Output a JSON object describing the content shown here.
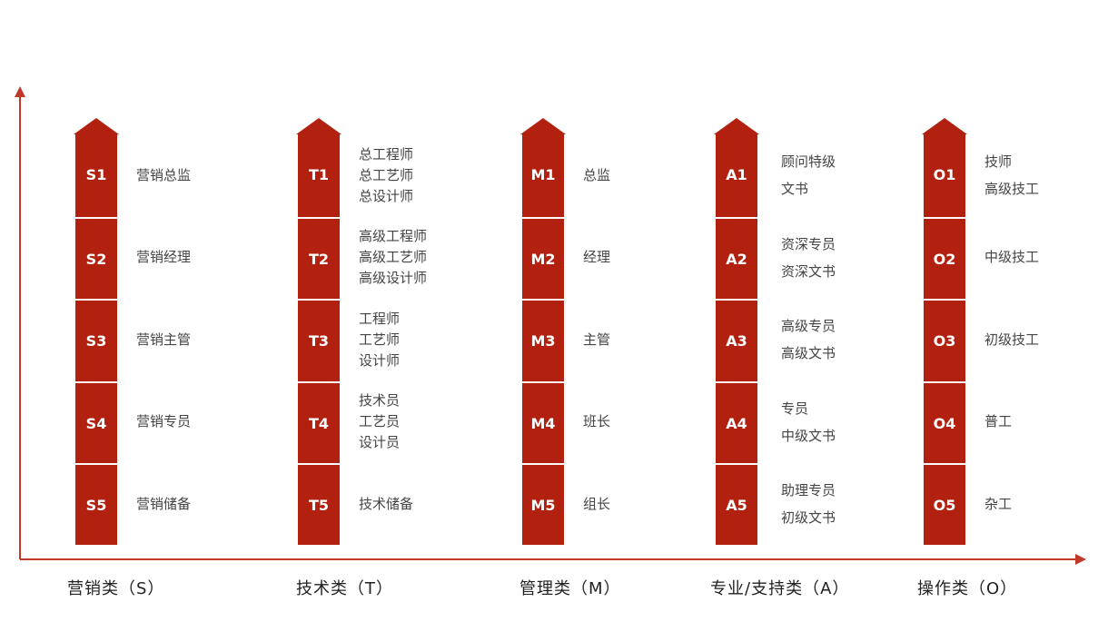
{
  "categories": [
    {
      "label": "营销类（S）",
      "levels": [
        {
          "code": "S1",
          "roles": [
            "营销总监"
          ]
        },
        {
          "code": "S2",
          "roles": [
            "营销经理"
          ]
        },
        {
          "code": "S3",
          "roles": [
            "营销主管"
          ]
        },
        {
          "code": "S4",
          "roles": [
            "营销专员"
          ]
        },
        {
          "code": "S5",
          "roles": [
            "营销储备"
          ]
        }
      ]
    },
    {
      "label": "技术类（T）",
      "levels": [
        {
          "code": "T1",
          "roles": [
            "总工程师",
            "总工艺师",
            "总设计师"
          ]
        },
        {
          "code": "T2",
          "roles": [
            "高级工程师",
            "高级工艺师",
            "高级设计师"
          ]
        },
        {
          "code": "T3",
          "roles": [
            "工程师",
            "工艺师",
            "设计师"
          ]
        },
        {
          "code": "T4",
          "roles": [
            "技术员",
            "工艺员",
            "设计员"
          ]
        },
        {
          "code": "T5",
          "roles": [
            "技术储备"
          ]
        }
      ]
    },
    {
      "label": "管理类（M）",
      "levels": [
        {
          "code": "M1",
          "roles": [
            "总监"
          ]
        },
        {
          "code": "M2",
          "roles": [
            "经理"
          ]
        },
        {
          "code": "M3",
          "roles": [
            "主管"
          ]
        },
        {
          "code": "M4",
          "roles": [
            "班长"
          ]
        },
        {
          "code": "M5",
          "roles": [
            "组长"
          ]
        }
      ]
    },
    {
      "label": "专业/支持类（A）",
      "levels": [
        {
          "code": "A1",
          "roles": [
            "顾问特级",
            "文书"
          ]
        },
        {
          "code": "A2",
          "roles": [
            "资深专员",
            "资深文书"
          ]
        },
        {
          "code": "A3",
          "roles": [
            "高级专员",
            "高级文书"
          ]
        },
        {
          "code": "A4",
          "roles": [
            "专员",
            "中级文书"
          ]
        },
        {
          "code": "A5",
          "roles": [
            "助理专员",
            "初级文书"
          ]
        }
      ]
    },
    {
      "label": "操作类（O）",
      "levels": [
        {
          "code": "O1",
          "roles": [
            "技师",
            "高级技工"
          ]
        },
        {
          "code": "O2",
          "roles": [
            "中级技工"
          ]
        },
        {
          "code": "O3",
          "roles": [
            "初级技工"
          ]
        },
        {
          "code": "O4",
          "roles": [
            "普工"
          ]
        },
        {
          "code": "O5",
          "roles": [
            "杂工"
          ]
        }
      ]
    }
  ],
  "colors": {
    "accent": "#b2210f",
    "axis": "#c0392b"
  }
}
